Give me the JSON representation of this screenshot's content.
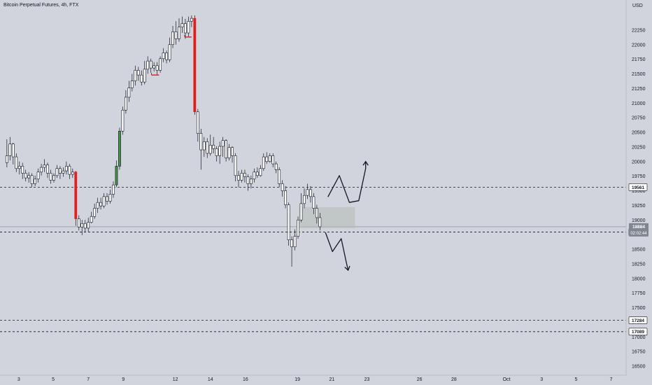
{
  "header": {
    "title": "Bitcoin Perpetual Futures, 4h, FTX"
  },
  "price_axis": {
    "unit": "USD"
  },
  "colors": {
    "background": "#d1d4dc",
    "candle": "#ffffff",
    "outline": "#131722",
    "up_highlight": "#4a8c4a",
    "down_highlight": "#e01f1f",
    "zone_fill": "#b4bcb4",
    "current_line": "#808690",
    "tag_dark": "#131722"
  },
  "chart_data": {
    "type": "candlestick",
    "ylim": [
      16500,
      22500
    ],
    "xlim": [
      0,
      100
    ],
    "y_ticks": [
      22250,
      22000,
      21750,
      21500,
      21250,
      21000,
      20750,
      20500,
      20250,
      20000,
      19750,
      19500,
      19250,
      19000,
      18750,
      18500,
      18250,
      18000,
      17750,
      17500,
      17250,
      17000,
      16750,
      16500
    ],
    "x_ticks": [
      {
        "label": "3",
        "t": 3
      },
      {
        "label": "5",
        "t": 8.5
      },
      {
        "label": "7",
        "t": 14.1
      },
      {
        "label": "9",
        "t": 19.7
      },
      {
        "label": "12",
        "t": 28
      },
      {
        "label": "14",
        "t": 33.6
      },
      {
        "label": "16",
        "t": 39.2
      },
      {
        "label": "19",
        "t": 47.5
      },
      {
        "label": "21",
        "t": 53
      },
      {
        "label": "23",
        "t": 58.6
      },
      {
        "label": "26",
        "t": 67
      },
      {
        "label": "28",
        "t": 72.5
      },
      {
        "label": "Oct",
        "t": 80.9
      },
      {
        "label": "3",
        "t": 86.5
      },
      {
        "label": "5",
        "t": 92
      },
      {
        "label": "7",
        "t": 97.6
      }
    ],
    "candles": [
      [
        1.1,
        19980,
        20100,
        20380,
        19900
      ],
      [
        1.6,
        20100,
        20300,
        20420,
        20020
      ],
      [
        2.1,
        20300,
        20080,
        20320,
        19950
      ],
      [
        2.6,
        20080,
        19880,
        20140,
        19820
      ],
      [
        3.1,
        19880,
        19920,
        20000,
        19780
      ],
      [
        3.6,
        19920,
        19800,
        19980,
        19700
      ],
      [
        4.1,
        19800,
        19720,
        19860,
        19660
      ],
      [
        4.6,
        19720,
        19760,
        19820,
        19640
      ],
      [
        5.1,
        19760,
        19620,
        19800,
        19560
      ],
      [
        5.6,
        19620,
        19700,
        19760,
        19580
      ],
      [
        6.1,
        19700,
        19820,
        19880,
        19640
      ],
      [
        6.6,
        19820,
        19900,
        19960,
        19760
      ],
      [
        7.1,
        19900,
        19940,
        20040,
        19820
      ],
      [
        7.6,
        19940,
        19800,
        19980,
        19720
      ],
      [
        8.1,
        19800,
        19680,
        19860,
        19620
      ],
      [
        8.6,
        19680,
        19760,
        19800,
        19640
      ],
      [
        9.1,
        19760,
        19880,
        19940,
        19720
      ],
      [
        9.6,
        19880,
        19800,
        19920,
        19700
      ],
      [
        10.1,
        19800,
        19840,
        19900,
        19740
      ],
      [
        10.6,
        19840,
        19920,
        20000,
        19780
      ],
      [
        11.1,
        19920,
        19780,
        19960,
        19700
      ],
      [
        11.6,
        19780,
        19820,
        19880,
        19720
      ],
      [
        12.1,
        19820,
        19020,
        19840,
        18900,
        "down"
      ],
      [
        12.6,
        19020,
        18880,
        19080,
        18820
      ],
      [
        13.1,
        18880,
        18940,
        19000,
        18740
      ],
      [
        13.6,
        18940,
        18860,
        19000,
        18800
      ],
      [
        14.1,
        18860,
        18960,
        19040,
        18800
      ],
      [
        14.6,
        18960,
        19060,
        19140,
        18940
      ],
      [
        15.1,
        19060,
        19200,
        19280,
        19020
      ],
      [
        15.6,
        19200,
        19300,
        19380,
        19120
      ],
      [
        16.1,
        19300,
        19240,
        19380,
        19180
      ],
      [
        16.6,
        19240,
        19400,
        19460,
        19200
      ],
      [
        17.1,
        19400,
        19320,
        19460,
        19260
      ],
      [
        17.6,
        19320,
        19440,
        19520,
        19280
      ],
      [
        18.1,
        19440,
        19600,
        19660,
        19380
      ],
      [
        18.6,
        19600,
        19920,
        20020,
        19560,
        "up"
      ],
      [
        19.1,
        19920,
        20520,
        20580,
        19860,
        "up"
      ],
      [
        19.6,
        20520,
        20880,
        20940,
        20460
      ],
      [
        20.1,
        20880,
        21100,
        21220,
        20820
      ],
      [
        20.6,
        21100,
        21260,
        21380,
        21020
      ],
      [
        21.1,
        21260,
        21380,
        21500,
        21200
      ],
      [
        21.6,
        21380,
        21560,
        21640,
        21300
      ],
      [
        22.1,
        21560,
        21480,
        21620,
        21380
      ],
      [
        22.6,
        21480,
        21360,
        21560,
        21300
      ],
      [
        23.1,
        21360,
        21580,
        21720,
        21320
      ],
      [
        23.6,
        21580,
        21720,
        21800,
        21500
      ],
      [
        24.1,
        21720,
        21600,
        21760,
        21520
      ],
      [
        24.6,
        21600,
        21640,
        21700,
        21540
      ],
      [
        25.1,
        21640,
        21560,
        21700,
        21480
      ],
      [
        25.6,
        21560,
        21760,
        21800,
        21520
      ],
      [
        26.1,
        21760,
        21860,
        21940,
        21700
      ],
      [
        26.6,
        21860,
        21740,
        21900,
        21680
      ],
      [
        27.1,
        21740,
        22000,
        22120,
        21700
      ],
      [
        27.6,
        22000,
        22220,
        22320,
        21940
      ],
      [
        28.1,
        22220,
        22100,
        22400,
        22000
      ],
      [
        28.6,
        22100,
        22300,
        22450,
        22050
      ],
      [
        29.1,
        22300,
        22360,
        22480,
        22200
      ],
      [
        29.6,
        22360,
        22200,
        22440,
        22100
      ],
      [
        30.1,
        22200,
        22400,
        22480,
        22140
      ],
      [
        30.6,
        22400,
        22450,
        22500,
        22300
      ],
      [
        31.1,
        22450,
        20850,
        22500,
        20800,
        "down"
      ],
      [
        31.6,
        20850,
        20480,
        20900,
        20340
      ],
      [
        32.1,
        20480,
        20200,
        20560,
        19860
      ],
      [
        32.6,
        20200,
        20340,
        20420,
        20080
      ],
      [
        33.1,
        20340,
        20140,
        20400,
        20060
      ],
      [
        33.6,
        20140,
        20280,
        20460,
        20100
      ],
      [
        34.1,
        20280,
        20220,
        20420,
        20140
      ],
      [
        34.6,
        20220,
        20100,
        20260,
        20000
      ],
      [
        35.1,
        20100,
        20260,
        20340,
        19960
      ],
      [
        35.6,
        20260,
        20360,
        20420,
        20080
      ],
      [
        36.1,
        20360,
        20060,
        20380,
        20000
      ],
      [
        36.6,
        20060,
        20240,
        20300,
        20020
      ],
      [
        37.1,
        20240,
        20100,
        20260,
        19980
      ],
      [
        37.6,
        20100,
        19760,
        20140,
        19660
      ],
      [
        38.1,
        19760,
        19680,
        19840,
        19560
      ],
      [
        38.6,
        19680,
        19800,
        19860,
        19640
      ],
      [
        39.1,
        19800,
        19740,
        19860,
        19640
      ],
      [
        39.6,
        19740,
        19620,
        19780,
        19500
      ],
      [
        40.1,
        19620,
        19700,
        19760,
        19540
      ],
      [
        40.6,
        19700,
        19820,
        19880,
        19640
      ],
      [
        41.1,
        19820,
        19760,
        19900,
        19720
      ],
      [
        41.6,
        19760,
        19880,
        19940,
        19740
      ],
      [
        42.1,
        19880,
        20080,
        20140,
        19840
      ],
      [
        42.6,
        20080,
        20000,
        20160,
        19960
      ],
      [
        43.1,
        20000,
        20100,
        20140,
        19980
      ],
      [
        43.6,
        20100,
        19960,
        20140,
        19900
      ],
      [
        44.1,
        19960,
        19860,
        20000,
        19800
      ],
      [
        44.6,
        19860,
        19620,
        19900,
        19560
      ],
      [
        45.1,
        19620,
        19500,
        19680,
        19400
      ],
      [
        45.6,
        19500,
        19260,
        19580,
        19200
      ],
      [
        46.1,
        19260,
        18660,
        19300,
        18560
      ],
      [
        46.6,
        18660,
        18540,
        18720,
        18200
      ],
      [
        47.1,
        18540,
        18720,
        18840,
        18480
      ],
      [
        47.6,
        18720,
        19000,
        19060,
        18680
      ],
      [
        48.1,
        19000,
        19280,
        19460,
        18960
      ],
      [
        48.6,
        19280,
        19420,
        19540,
        19200
      ],
      [
        49.1,
        19420,
        19520,
        19620,
        19360
      ],
      [
        49.6,
        19520,
        19400,
        19580,
        19300
      ],
      [
        50.1,
        19400,
        19200,
        19460,
        19100
      ],
      [
        50.6,
        19200,
        19040,
        19260,
        18940
      ],
      [
        51.1,
        19040,
        18884,
        19120,
        18820
      ]
    ],
    "levels": [
      {
        "price": 19561,
        "label": "19561",
        "style": "dashed"
      },
      {
        "price": 18794,
        "label": "18794",
        "style": "dashed"
      },
      {
        "price": 17284,
        "label": "17284",
        "style": "dashed"
      },
      {
        "price": 17089,
        "label": "17089",
        "style": "dashed"
      }
    ],
    "current_price": {
      "price": 18884,
      "label": "18884",
      "countdown": "02:02:44"
    },
    "zone": {
      "t0": 47.8,
      "t1": 56.7,
      "y_top": 19220,
      "y_bottom": 18860
    },
    "marker_lines": [
      {
        "t0": 24.2,
        "t1": 25.4,
        "price": 21480,
        "color": "red"
      },
      {
        "t0": 29.5,
        "t1": 30.6,
        "price": 22130,
        "color": "red"
      }
    ],
    "drawings": [
      {
        "name": "bullish-path",
        "points": [
          [
            52.4,
            19400
          ],
          [
            54.2,
            19760
          ],
          [
            55.8,
            19300
          ],
          [
            57.3,
            19330
          ],
          [
            58.4,
            19880
          ]
        ],
        "arrowhead": [
          58.4,
          20000
        ]
      },
      {
        "name": "bearish-path",
        "points": [
          [
            52.0,
            18780
          ],
          [
            53.1,
            18460
          ],
          [
            54.5,
            18680
          ],
          [
            55.3,
            18280
          ]
        ],
        "arrowhead": [
          55.6,
          18140
        ]
      }
    ]
  }
}
